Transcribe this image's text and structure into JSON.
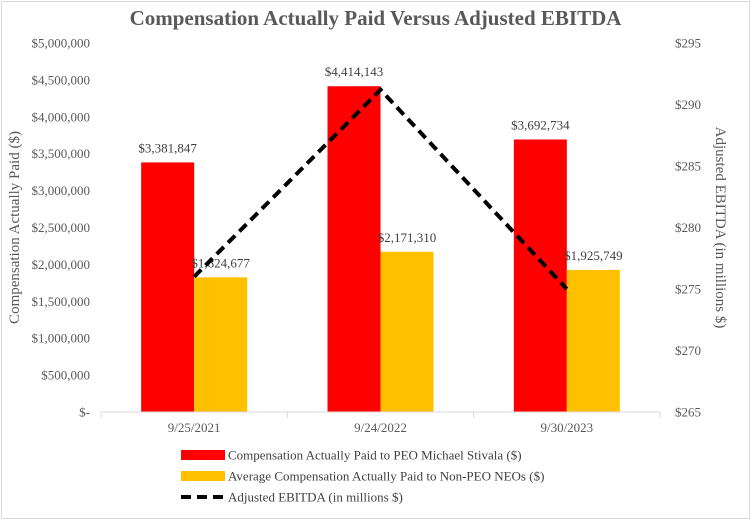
{
  "chart_data": {
    "type": "bar",
    "title": "Compensation Actually Paid Versus Adjusted EBITDA",
    "categories": [
      "9/25/2021",
      "9/24/2022",
      "9/30/2023"
    ],
    "series": [
      {
        "name": "Compensation Actually Paid to PEO Michael Stivala ($)",
        "kind": "bar",
        "axis": "left",
        "color": "#ff0000",
        "values": [
          3381847,
          4414143,
          3692734
        ],
        "labels": [
          "$3,381,847",
          "$4,414,143",
          "$3,692,734"
        ]
      },
      {
        "name": "Average Compensation Actually Paid to Non-PEO NEOs ($)",
        "kind": "bar",
        "axis": "left",
        "color": "#ffc000",
        "values": [
          1824677,
          2171310,
          1925749
        ],
        "labels": [
          "$1,824,677",
          "$2,171,310",
          "$1,925,749"
        ]
      },
      {
        "name": "Adjusted EBITDA (in millions $)",
        "kind": "line",
        "axis": "right",
        "color": "#000000",
        "style": "dashed",
        "values": [
          276,
          291.2,
          275
        ]
      }
    ],
    "ylabel": "Compensation Actually Paid ($)",
    "y2label": "Adjusted EBITDA (in millions $)",
    "ylim": [
      0,
      5000000
    ],
    "y2lim": [
      265,
      295
    ],
    "yticks": [
      "$-",
      "$500,000",
      "$1,000,000",
      "$1,500,000",
      "$2,000,000",
      "$2,500,000",
      "$3,000,000",
      "$3,500,000",
      "$4,000,000",
      "$4,500,000",
      "$5,000,000"
    ],
    "y2ticks": [
      "$265",
      "$270",
      "$275",
      "$280",
      "$285",
      "$290",
      "$295"
    ],
    "grid": false,
    "legend_position": "bottom"
  }
}
